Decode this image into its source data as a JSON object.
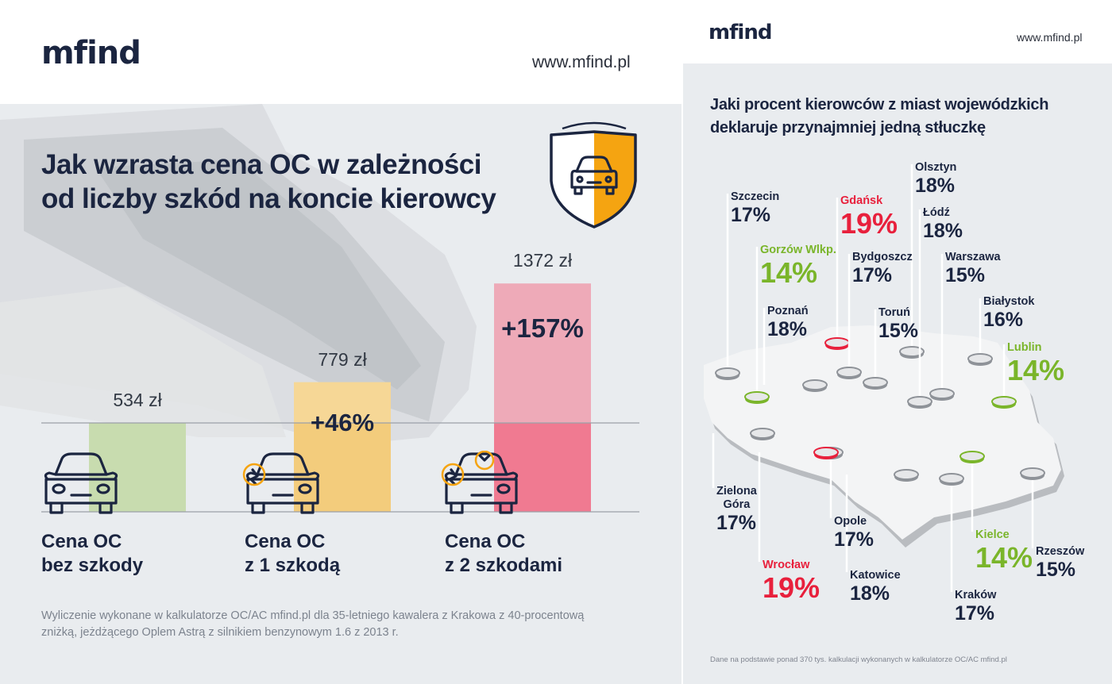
{
  "left": {
    "logo": "mfind",
    "url": "www.mfind.pl",
    "title_line1": "Jak wzrasta cena OC w zależności",
    "title_line2": "od liczby szkód na koncie kierowcy",
    "note_line1": "Wyliczenie wykonane w kalkulatorze OC/AC mfind.pl dla 35-letniego kawalera z Krakowa z 40-procentową",
    "note_line2": "zniżką, jeżdżącego Oplem Astrą z silnikiem benzynowym 1.6 z 2013 r."
  },
  "chart_data": {
    "type": "bar",
    "title": "Jak wzrasta cena OC w zależności od liczby szkód na koncie kierowcy",
    "categories": [
      {
        "line1": "Cena OC",
        "line2": "bez szkody"
      },
      {
        "line1": "Cena OC",
        "line2": "z 1 szkodą"
      },
      {
        "line1": "Cena OC",
        "line2": "z 2 szkodami"
      }
    ],
    "values": [
      534,
      779,
      1372
    ],
    "value_labels": [
      "534 zł",
      "779 zł",
      "1372 zł"
    ],
    "increase_labels": [
      "",
      "+46%",
      "+157%"
    ],
    "colors": [
      "#c8dcaf",
      "#f3cc7c",
      "#f07a91"
    ],
    "colors_light": [
      "#c8dcaf",
      "#f6d796",
      "#eeaab8"
    ]
  },
  "right": {
    "logo": "mfind",
    "url": "www.mfind.pl",
    "title_line1": "Jaki procent kierowców z miast wojewódzkich",
    "title_line2": "deklaruje przynajmniej jedną stłuczkę",
    "note": "Dane na podstawie ponad 370 tys. kalkulacji wykonanych w kalkulatorze OC/AC mfind.pl",
    "colors": {
      "high": "#e8203c",
      "low": "#7ab52a",
      "normal": "#1b2540"
    },
    "cities": [
      {
        "name": "Szczecin",
        "pct": "17%",
        "level": "normal"
      },
      {
        "name": "Gdańsk",
        "pct": "19%",
        "level": "high"
      },
      {
        "name": "Olsztyn",
        "pct": "18%",
        "level": "normal"
      },
      {
        "name": "Łódź",
        "pct": "18%",
        "level": "normal"
      },
      {
        "name": "Gorzów Wlkp.",
        "pct": "14%",
        "level": "low"
      },
      {
        "name": "Bydgoszcz",
        "pct": "17%",
        "level": "normal"
      },
      {
        "name": "Warszawa",
        "pct": "15%",
        "level": "normal"
      },
      {
        "name": "Poznań",
        "pct": "18%",
        "level": "normal"
      },
      {
        "name": "Toruń",
        "pct": "15%",
        "level": "normal"
      },
      {
        "name": "Białystok",
        "pct": "16%",
        "level": "normal"
      },
      {
        "name": "Lublin",
        "pct": "14%",
        "level": "low"
      },
      {
        "name": "Zielona Góra",
        "pct": "17%",
        "level": "normal"
      },
      {
        "name": "Opole",
        "pct": "17%",
        "level": "normal"
      },
      {
        "name": "Kielce",
        "pct": "14%",
        "level": "low"
      },
      {
        "name": "Rzeszów",
        "pct": "15%",
        "level": "normal"
      },
      {
        "name": "Wrocław",
        "pct": "19%",
        "level": "high"
      },
      {
        "name": "Katowice",
        "pct": "18%",
        "level": "normal"
      },
      {
        "name": "Kraków",
        "pct": "17%",
        "level": "normal"
      }
    ]
  }
}
